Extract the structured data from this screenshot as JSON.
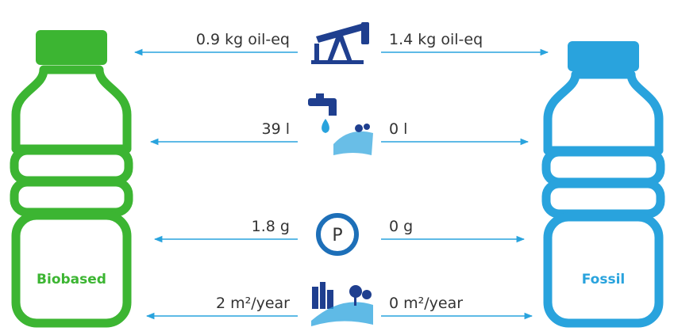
{
  "bottles": [
    {
      "label": "Biobased"
    },
    {
      "label": "Fossil"
    }
  ],
  "rows": [
    {
      "left": "0.9 kg oil-eq",
      "right": "1.4 kg oil-eq"
    },
    {
      "left": "39 l",
      "right": "0 l"
    },
    {
      "left": "1.8 g",
      "right": "0 g"
    },
    {
      "left": "2 m²/year",
      "right": "0 m²/year"
    }
  ],
  "phosphorus_icon": "P"
}
